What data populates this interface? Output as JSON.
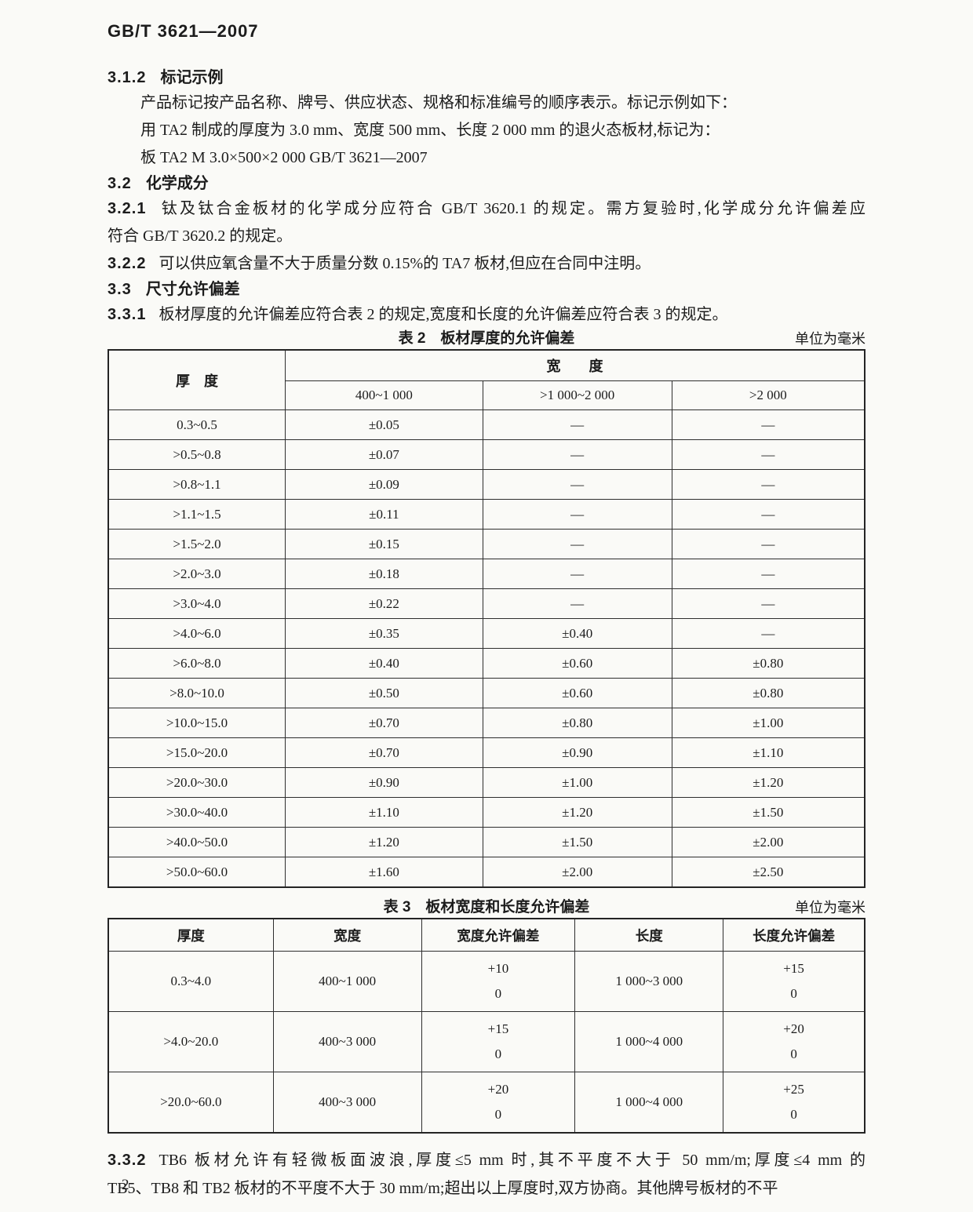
{
  "header": {
    "doc_code": "GB/T 3621—2007"
  },
  "sections": {
    "s312": {
      "num": "3.1.2",
      "title": "标记示例",
      "p_intro": "产品标记按产品名称、牌号、供应状态、规格和标准编号的顺序表示。标记示例如下：",
      "p_example1": "用 TA2 制成的厚度为 3.0 mm、宽度 500 mm、长度 2 000 mm 的退火态板材,标记为：",
      "p_example2": "板 TA2 M 3.0×500×2 000 GB/T 3621—2007"
    },
    "s32": {
      "num": "3.2",
      "title": "化学成分"
    },
    "s321": {
      "num": "3.2.1",
      "line1": "钛及钛合金板材的化学成分应符合 GB/T 3620.1 的规定。需方复验时,化学成分允许偏差应",
      "line2": "符合 GB/T 3620.2 的规定。"
    },
    "s322": {
      "num": "3.2.2",
      "text": "可以供应氧含量不大于质量分数 0.15%的 TA7 板材,但应在合同中注明。"
    },
    "s33": {
      "num": "3.3",
      "title": "尺寸允许偏差"
    },
    "s331": {
      "num": "3.3.1",
      "text": "板材厚度的允许偏差应符合表 2 的规定,宽度和长度的允许偏差应符合表 3 的规定。"
    },
    "s332": {
      "num": "3.3.2",
      "line1": "TB6 板材允许有轻微板面波浪,厚度≤5 mm 时,其不平度不大于 50 mm/m;厚度≤4 mm 的",
      "line2": "TB5、TB8 和 TB2 板材的不平度不大于 30 mm/m;超出以上厚度时,双方协商。其他牌号板材的不平"
    }
  },
  "table2": {
    "caption": "表 2　板材厚度的允许偏差",
    "unit": "单位为毫米",
    "head_thickness": "厚　度",
    "head_width_group": "宽　　度",
    "sub_cols": [
      "400~1 000",
      ">1 000~2 000",
      ">2 000"
    ],
    "rows": [
      {
        "thickness": "0.3~0.5",
        "values": [
          "±0.05",
          "—",
          "—"
        ]
      },
      {
        "thickness": ">0.5~0.8",
        "values": [
          "±0.07",
          "—",
          "—"
        ]
      },
      {
        "thickness": ">0.8~1.1",
        "values": [
          "±0.09",
          "—",
          "—"
        ]
      },
      {
        "thickness": ">1.1~1.5",
        "values": [
          "±0.11",
          "—",
          "—"
        ]
      },
      {
        "thickness": ">1.5~2.0",
        "values": [
          "±0.15",
          "—",
          "—"
        ]
      },
      {
        "thickness": ">2.0~3.0",
        "values": [
          "±0.18",
          "—",
          "—"
        ]
      },
      {
        "thickness": ">3.0~4.0",
        "values": [
          "±0.22",
          "—",
          "—"
        ]
      },
      {
        "thickness": ">4.0~6.0",
        "values": [
          "±0.35",
          "±0.40",
          "—"
        ]
      },
      {
        "thickness": ">6.0~8.0",
        "values": [
          "±0.40",
          "±0.60",
          "±0.80"
        ]
      },
      {
        "thickness": ">8.0~10.0",
        "values": [
          "±0.50",
          "±0.60",
          "±0.80"
        ]
      },
      {
        "thickness": ">10.0~15.0",
        "values": [
          "±0.70",
          "±0.80",
          "±1.00"
        ]
      },
      {
        "thickness": ">15.0~20.0",
        "values": [
          "±0.70",
          "±0.90",
          "±1.10"
        ]
      },
      {
        "thickness": ">20.0~30.0",
        "values": [
          "±0.90",
          "±1.00",
          "±1.20"
        ]
      },
      {
        "thickness": ">30.0~40.0",
        "values": [
          "±1.10",
          "±1.20",
          "±1.50"
        ]
      },
      {
        "thickness": ">40.0~50.0",
        "values": [
          "±1.20",
          "±1.50",
          "±2.00"
        ]
      },
      {
        "thickness": ">50.0~60.0",
        "values": [
          "±1.60",
          "±2.00",
          "±2.50"
        ]
      }
    ]
  },
  "table3": {
    "caption": "表 3　板材宽度和长度允许偏差",
    "unit": "单位为毫米",
    "headers": [
      "厚度",
      "宽度",
      "宽度允许偏差",
      "长度",
      "长度允许偏差"
    ],
    "rows": [
      {
        "thickness": "0.3~4.0",
        "width": "400~1 000",
        "width_tol": [
          "+10",
          "0"
        ],
        "length": "1 000~3 000",
        "length_tol": [
          "+15",
          "0"
        ]
      },
      {
        "thickness": ">4.0~20.0",
        "width": "400~3 000",
        "width_tol": [
          "+15",
          "0"
        ],
        "length": "1 000~4 000",
        "length_tol": [
          "+20",
          "0"
        ]
      },
      {
        "thickness": ">20.0~60.0",
        "width": "400~3 000",
        "width_tol": [
          "+20",
          "0"
        ],
        "length": "1 000~4 000",
        "length_tol": [
          "+25",
          "0"
        ]
      }
    ]
  },
  "footer": {
    "page_number": "2"
  }
}
